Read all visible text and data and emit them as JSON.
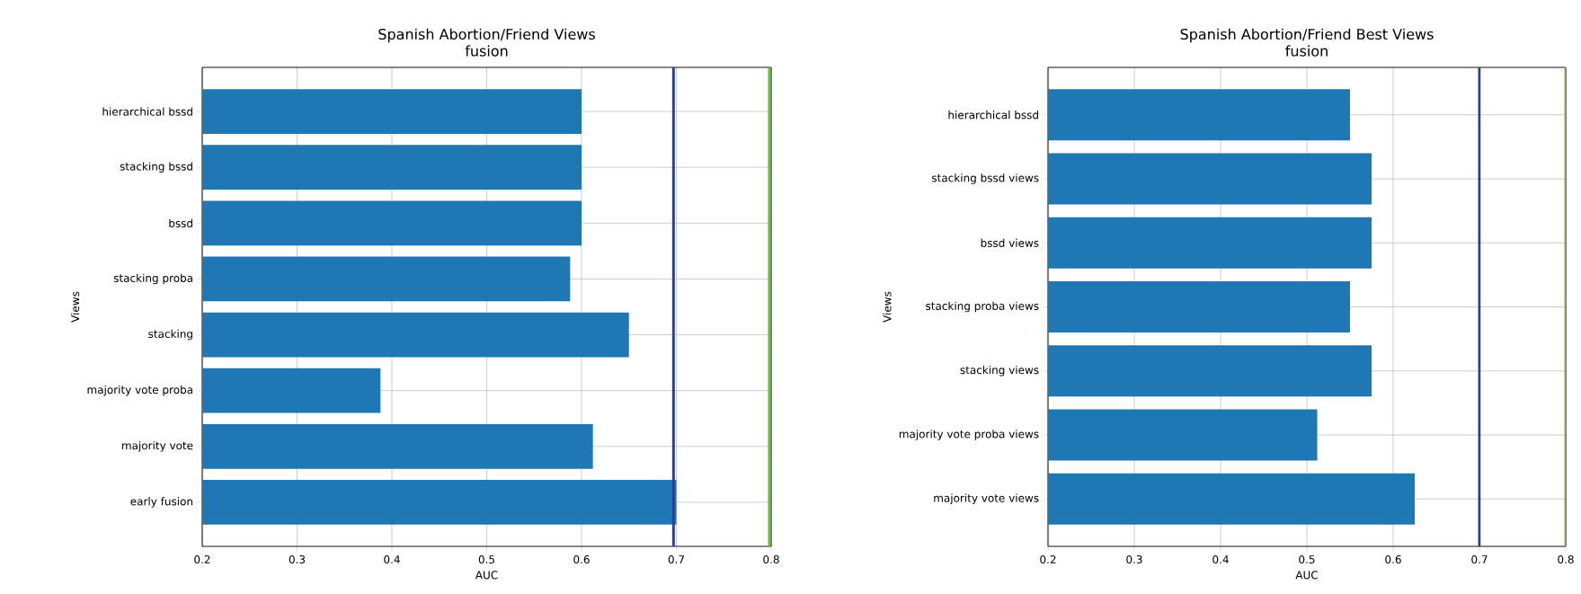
{
  "chart_data": [
    {
      "type": "bar",
      "orientation": "horizontal",
      "title": "Spanish Abortion/Friend Views",
      "subtitle": "fusion",
      "xlabel": "AUC",
      "ylabel": "Views",
      "categories": [
        "hierarchical bssd",
        "stacking bssd",
        "bssd",
        "stacking proba",
        "stacking",
        "majority vote proba",
        "majority vote",
        "early fusion"
      ],
      "values": [
        0.6,
        0.6,
        0.6,
        0.588,
        0.65,
        0.388,
        0.612,
        0.7
      ],
      "color": "#1f77b4",
      "xlim": [
        0.2,
        0.8
      ],
      "xticks": [
        0.2,
        0.3,
        0.4,
        0.5,
        0.6,
        0.7,
        0.8
      ],
      "grid": true,
      "ref_lines": [
        {
          "axis": "x",
          "value": 0.697,
          "color": "#2a3f9d"
        },
        {
          "axis": "x",
          "value": 0.798,
          "color": "#6cbf3c"
        }
      ]
    },
    {
      "type": "bar",
      "orientation": "horizontal",
      "title": "Spanish Abortion/Friend Best Views",
      "subtitle": "fusion",
      "xlabel": "AUC",
      "ylabel": "Views",
      "categories": [
        "hierarchical bssd",
        "stacking bssd views",
        "bssd views",
        "stacking proba views",
        "stacking views",
        "majority vote proba views",
        "majority vote views"
      ],
      "values": [
        0.55,
        0.575,
        0.575,
        0.55,
        0.575,
        0.512,
        0.625
      ],
      "color": "#1f77b4",
      "xlim": [
        0.2,
        0.8
      ],
      "xticks": [
        0.2,
        0.3,
        0.4,
        0.5,
        0.6,
        0.7,
        0.8
      ],
      "grid": true,
      "ref_lines": [
        {
          "axis": "x",
          "value": 0.7,
          "color": "#2a3f9d"
        },
        {
          "axis": "x",
          "value": 0.8,
          "color": "#6cbf3c"
        }
      ]
    }
  ]
}
